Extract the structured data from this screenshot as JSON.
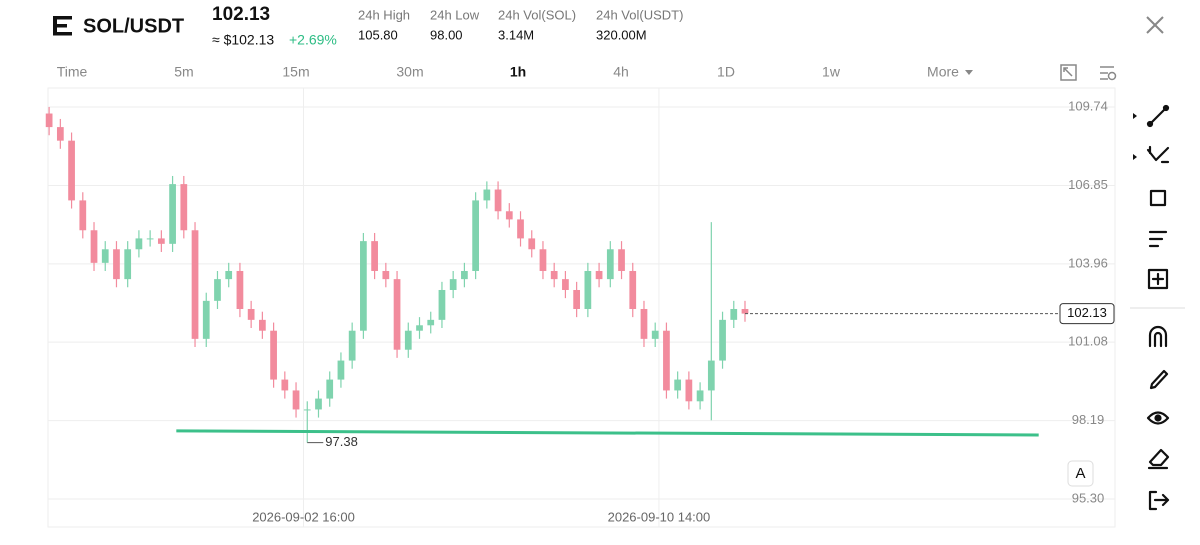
{
  "header": {
    "symbol": "SOL/USDT",
    "price": "102.13",
    "approx": "≈ $102.13",
    "change": "+2.69%",
    "stats": [
      {
        "label": "24h High",
        "value": "105.80"
      },
      {
        "label": "24h Low",
        "value": "98.00"
      },
      {
        "label": "24h Vol(SOL)",
        "value": "3.14M"
      },
      {
        "label": "24h Vol(USDT)",
        "value": "320.00M"
      }
    ]
  },
  "intervals": [
    "Time",
    "5m",
    "15m",
    "30m",
    "1h",
    "4h",
    "1D",
    "1w",
    "More"
  ],
  "active_interval": "1h",
  "scale_button": "A",
  "chart_data": {
    "type": "candlestick",
    "up_color": "#7fd3ae",
    "down_color": "#f28b9d",
    "x": [
      -136,
      -130,
      -124,
      -118,
      -112,
      -106,
      -100,
      -94,
      -88,
      -82,
      -76,
      -70,
      -64,
      -58,
      -52,
      -46,
      -40,
      -34,
      -28,
      -22,
      -16,
      -10,
      -4,
      2,
      8,
      14,
      20,
      26,
      32,
      38,
      44,
      50,
      56,
      62,
      68,
      74,
      80,
      86,
      92,
      98,
      104,
      110,
      116,
      122,
      128,
      134,
      140,
      146,
      152,
      158,
      164,
      170,
      176,
      182,
      188,
      194,
      200,
      206,
      212,
      218,
      224,
      230,
      236
    ],
    "open": [
      109.5,
      109.0,
      108.5,
      106.3,
      105.2,
      104.0,
      104.5,
      103.4,
      104.5,
      104.9,
      104.9,
      104.7,
      106.9,
      105.2,
      101.2,
      102.6,
      103.4,
      103.7,
      102.3,
      101.9,
      101.5,
      99.7,
      99.3,
      98.6,
      98.6,
      99.0,
      99.7,
      100.4,
      101.5,
      104.8,
      103.7,
      103.4,
      100.8,
      101.5,
      101.7,
      101.9,
      103.0,
      103.4,
      103.7,
      106.3,
      106.7,
      105.9,
      105.6,
      104.9,
      104.5,
      103.7,
      103.4,
      103.0,
      102.3,
      103.7,
      103.4,
      104.5,
      103.7,
      102.3,
      101.2,
      101.5,
      99.3,
      99.7,
      98.9,
      99.3,
      100.4,
      101.9,
      102.3
    ],
    "high": [
      109.74,
      109.3,
      108.8,
      106.6,
      105.5,
      104.8,
      104.8,
      104.8,
      105.2,
      105.2,
      105.2,
      107.2,
      107.2,
      105.5,
      102.9,
      103.7,
      104.0,
      104.0,
      102.6,
      102.2,
      101.8,
      100.0,
      99.6,
      98.9,
      99.3,
      100.0,
      100.7,
      101.8,
      105.1,
      105.1,
      104.0,
      103.7,
      101.8,
      102.0,
      102.2,
      103.3,
      103.7,
      104.0,
      106.6,
      107.0,
      107.0,
      106.2,
      105.9,
      105.2,
      104.8,
      104.0,
      103.7,
      103.3,
      104.0,
      104.0,
      104.8,
      104.8,
      104.0,
      102.6,
      101.8,
      101.8,
      100.0,
      100.0,
      99.6,
      105.5,
      102.2,
      102.6,
      102.6
    ],
    "low": [
      108.7,
      108.2,
      106.0,
      104.9,
      103.7,
      103.7,
      103.1,
      103.1,
      104.2,
      104.6,
      104.4,
      104.4,
      104.9,
      100.9,
      100.9,
      102.3,
      103.1,
      102.0,
      101.6,
      101.2,
      99.4,
      99.0,
      98.3,
      97.38,
      98.3,
      98.7,
      99.4,
      100.1,
      101.2,
      103.4,
      103.1,
      100.5,
      100.5,
      101.2,
      101.4,
      101.6,
      102.7,
      103.1,
      103.4,
      106.0,
      105.6,
      105.3,
      104.6,
      104.2,
      103.4,
      103.1,
      102.7,
      102.0,
      102.0,
      103.1,
      103.1,
      103.4,
      102.0,
      100.9,
      100.9,
      99.0,
      99.0,
      98.6,
      98.6,
      98.2,
      100.1,
      101.6,
      101.83
    ],
    "close": [
      109.0,
      108.5,
      106.3,
      105.2,
      104.0,
      104.5,
      103.4,
      104.5,
      104.9,
      104.9,
      104.7,
      106.9,
      105.2,
      101.2,
      102.6,
      103.4,
      103.7,
      102.3,
      101.9,
      101.5,
      99.7,
      99.3,
      98.6,
      98.6,
      99.0,
      99.7,
      100.4,
      101.5,
      104.8,
      103.7,
      103.4,
      100.8,
      101.5,
      101.7,
      101.9,
      103.0,
      103.4,
      103.7,
      106.3,
      106.7,
      105.9,
      105.6,
      104.9,
      104.5,
      103.7,
      103.4,
      103.0,
      102.3,
      103.7,
      103.4,
      104.5,
      103.7,
      102.3,
      101.2,
      101.5,
      99.3,
      99.7,
      98.9,
      99.3,
      100.4,
      101.9,
      102.3,
      102.13
    ],
    "xlim": [
      -136.6,
      433.8
    ],
    "xticks": [
      {
        "value": 0,
        "label": "2026-09-02 16:00"
      },
      {
        "value": 190,
        "label": "2026-09-10 14:00"
      }
    ],
    "ylim": [
      94.27,
      110.44
    ],
    "yticks": [
      109.74,
      106.85,
      103.96,
      101.08,
      98.19,
      {
        "value": 95.3,
        "label": "95.30"
      }
    ],
    "grid": true,
    "last_price": 102.13,
    "low_marker": {
      "x": 2,
      "value": 97.38
    },
    "trendline": {
      "x": [
        -68,
        393
      ],
      "values": [
        97.81,
        97.66
      ],
      "color": "#3cc08a"
    }
  }
}
